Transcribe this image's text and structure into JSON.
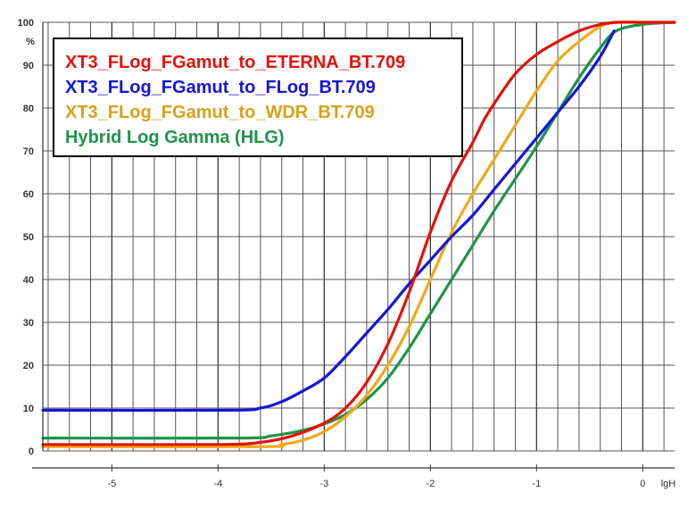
{
  "chart_data": {
    "type": "line",
    "title": "",
    "xlabel": "lgH",
    "ylabel": "%",
    "xlim": [
      -5.65,
      0.3
    ],
    "ylim": [
      0,
      100
    ],
    "grid": true,
    "legend_position": "top-left",
    "x_ticks": [
      -5,
      -4,
      -3,
      -2,
      -1,
      0
    ],
    "x_tick_labels": [
      "-5",
      "-4",
      "-3",
      "-2",
      "-1",
      "0"
    ],
    "y_ticks": [
      0,
      10,
      20,
      30,
      40,
      50,
      60,
      70,
      80,
      90,
      100
    ],
    "y_tick_labels": [
      "0",
      "10",
      "20",
      "30",
      "40",
      "50",
      "60",
      "70",
      "80",
      "90",
      "100"
    ],
    "series": [
      {
        "name": "XT3_FLog_FGamut_to_ETERNA_BT.709",
        "color": "#e3120b",
        "x": [
          -5.65,
          -4.0,
          -3.6,
          -3.3,
          -3.0,
          -2.8,
          -2.6,
          -2.4,
          -2.2,
          -2.0,
          -1.8,
          -1.6,
          -1.5,
          -1.4,
          -1.2,
          -1.0,
          -0.8,
          -0.6,
          -0.4,
          -0.25,
          0.0,
          0.3
        ],
        "y": [
          1.5,
          1.5,
          2.0,
          3.5,
          6.5,
          10,
          16,
          25,
          37,
          51,
          63,
          72,
          77,
          81,
          88,
          92.5,
          95.5,
          98,
          99.5,
          100,
          100,
          100
        ]
      },
      {
        "name": "XT3_FLog_FGamut_to_FLog_BT.709",
        "color": "#1515d8",
        "x": [
          -5.65,
          -3.9,
          -3.6,
          -3.4,
          -3.2,
          -3.0,
          -2.8,
          -2.6,
          -2.4,
          -2.2,
          -2.0,
          -1.8,
          -1.6,
          -1.4,
          -1.2,
          -1.0,
          -0.8,
          -0.6,
          -0.4,
          -0.27
        ],
        "y": [
          9.5,
          9.5,
          10,
          11.5,
          14,
          17,
          22,
          27.5,
          33,
          39,
          44.5,
          50,
          55,
          61,
          67,
          73,
          79,
          85,
          92,
          98
        ]
      },
      {
        "name": "XT3_FLog_FGamut_to_WDR_BT.709",
        "color": "#f0a818",
        "x": [
          -5.65,
          -3.6,
          -3.4,
          -3.2,
          -3.0,
          -2.8,
          -2.6,
          -2.4,
          -2.2,
          -2.0,
          -1.8,
          -1.6,
          -1.4,
          -1.2,
          -1.0,
          -0.8,
          -0.6,
          -0.4,
          -0.25,
          0.0,
          0.3
        ],
        "y": [
          1.0,
          1.0,
          1.5,
          2.5,
          4.5,
          8,
          13,
          20,
          29,
          40,
          51,
          60,
          68,
          76,
          84,
          91,
          95.5,
          99,
          100,
          100,
          100
        ]
      },
      {
        "name": "Hybrid Log Gamma (HLG)",
        "color": "#1d9448",
        "x": [
          -5.65,
          -3.8,
          -3.5,
          -3.2,
          -3.0,
          -2.8,
          -2.6,
          -2.4,
          -2.2,
          -2.0,
          -1.8,
          -1.6,
          -1.4,
          -1.2,
          -1.0,
          -0.8,
          -0.6,
          -0.4,
          -0.25,
          0.0,
          0.3
        ],
        "y": [
          3.0,
          3.0,
          3.5,
          4.8,
          6.3,
          8.5,
          12,
          17,
          24,
          32,
          40,
          48,
          56,
          63.5,
          71,
          79,
          87,
          94,
          98,
          99.5,
          100
        ]
      }
    ]
  }
}
